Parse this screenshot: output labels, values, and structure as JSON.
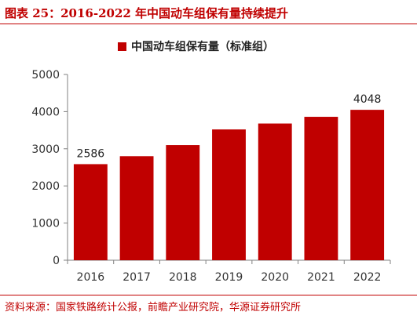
{
  "header": {
    "title": "图表 25：2016-2022 年中国动车组保有量持续提升"
  },
  "footer": {
    "source": "资料来源：国家铁路统计公报，前瞻产业研究院，华源证券研究所"
  },
  "colors": {
    "accent": "#c00000",
    "bar": "#c00000",
    "axis": "#808080",
    "text": "#333333"
  },
  "chart_data": {
    "type": "bar",
    "categories": [
      "2016",
      "2017",
      "2018",
      "2019",
      "2020",
      "2021",
      "2022"
    ],
    "series": [
      {
        "name": "中国动车组保有量（标准组）",
        "values": [
          2586,
          2800,
          3100,
          3520,
          3680,
          3860,
          4048
        ]
      }
    ],
    "data_labels": {
      "2016": "2586",
      "2022": "4048"
    },
    "ylim": [
      0,
      5000
    ],
    "yticks": [
      "0",
      "1000",
      "2000",
      "3000",
      "4000",
      "5000"
    ],
    "grid": false,
    "legend_position": "top-center",
    "xlabel": "",
    "ylabel": ""
  }
}
